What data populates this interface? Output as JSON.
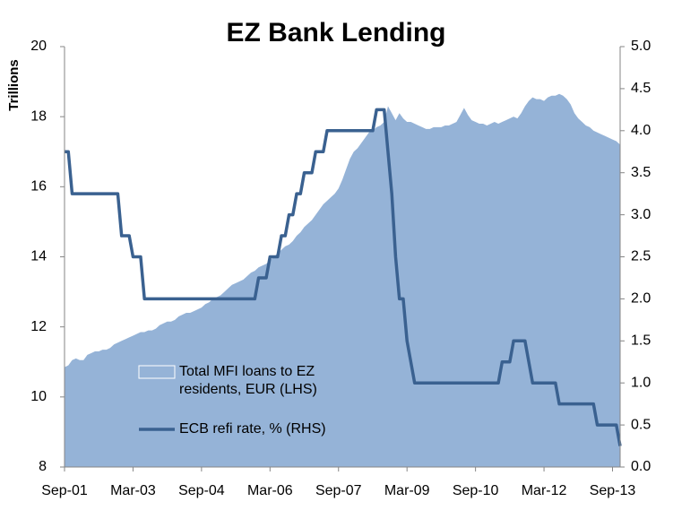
{
  "chart_data": {
    "type": "combo",
    "title": "EZ Bank Lending",
    "y_label": "Trillions",
    "categories": [
      "Sep-01",
      null,
      null,
      null,
      null,
      null,
      null,
      null,
      null,
      null,
      null,
      null,
      null,
      null,
      null,
      null,
      null,
      null,
      "Mar-03",
      null,
      null,
      null,
      null,
      null,
      null,
      null,
      null,
      null,
      null,
      null,
      null,
      null,
      null,
      null,
      null,
      null,
      "Sep-04",
      null,
      null,
      null,
      null,
      null,
      null,
      null,
      null,
      null,
      null,
      null,
      null,
      null,
      null,
      null,
      null,
      null,
      "Mar-06",
      null,
      null,
      null,
      null,
      null,
      null,
      null,
      null,
      null,
      null,
      null,
      null,
      null,
      null,
      null,
      null,
      null,
      "Sep-07",
      null,
      null,
      null,
      null,
      null,
      null,
      null,
      null,
      null,
      null,
      null,
      null,
      null,
      null,
      null,
      null,
      null,
      "Mar-09",
      null,
      null,
      null,
      null,
      null,
      null,
      null,
      null,
      null,
      null,
      null,
      null,
      null,
      null,
      null,
      null,
      null,
      "Sep-10",
      null,
      null,
      null,
      null,
      null,
      null,
      null,
      null,
      null,
      null,
      null,
      null,
      null,
      null,
      null,
      null,
      null,
      "Mar-12",
      null,
      null,
      null,
      null,
      null,
      null,
      null,
      null,
      null,
      null,
      null,
      null,
      null,
      null,
      null,
      null,
      null,
      "Sep-13",
      null,
      null
    ],
    "series": [
      {
        "name": "Total MFI loans to EZ residents, EUR (LHS)",
        "type": "area",
        "color": "#95b3d7",
        "values": [
          10.85,
          10.9,
          11.05,
          11.1,
          11.05,
          11.05,
          11.2,
          11.25,
          11.3,
          11.3,
          11.35,
          11.35,
          11.4,
          11.5,
          11.55,
          11.6,
          11.65,
          11.7,
          11.75,
          11.8,
          11.85,
          11.85,
          11.9,
          11.9,
          11.95,
          12.05,
          12.1,
          12.15,
          12.15,
          12.2,
          12.3,
          12.35,
          12.4,
          12.4,
          12.45,
          12.5,
          12.55,
          12.65,
          12.7,
          12.8,
          12.85,
          12.9,
          13.0,
          13.1,
          13.2,
          13.25,
          13.3,
          13.35,
          13.45,
          13.55,
          13.6,
          13.7,
          13.75,
          13.8,
          13.9,
          14.0,
          14.1,
          14.2,
          14.3,
          14.35,
          14.45,
          14.6,
          14.7,
          14.85,
          14.95,
          15.05,
          15.2,
          15.35,
          15.5,
          15.6,
          15.7,
          15.8,
          15.95,
          16.2,
          16.5,
          16.8,
          17.0,
          17.1,
          17.25,
          17.4,
          17.55,
          17.6,
          17.7,
          17.75,
          17.85,
          18.3,
          18.1,
          17.9,
          18.1,
          17.95,
          17.85,
          17.85,
          17.8,
          17.75,
          17.7,
          17.65,
          17.65,
          17.7,
          17.7,
          17.7,
          17.75,
          17.75,
          17.8,
          17.85,
          18.05,
          18.25,
          18.05,
          17.9,
          17.85,
          17.8,
          17.8,
          17.75,
          17.8,
          17.85,
          17.8,
          17.85,
          17.9,
          17.95,
          18.0,
          17.95,
          18.1,
          18.3,
          18.45,
          18.55,
          18.5,
          18.5,
          18.45,
          18.55,
          18.6,
          18.6,
          18.65,
          18.6,
          18.5,
          18.35,
          18.1,
          17.95,
          17.85,
          17.75,
          17.7,
          17.6,
          17.55,
          17.5,
          17.45,
          17.4,
          17.35,
          17.3,
          17.2
        ]
      },
      {
        "name": "ECB refi rate, % (RHS)",
        "type": "line",
        "axis": "y2",
        "color": "#3a6190",
        "values": [
          3.75,
          3.75,
          3.25,
          3.25,
          3.25,
          3.25,
          3.25,
          3.25,
          3.25,
          3.25,
          3.25,
          3.25,
          3.25,
          3.25,
          3.25,
          2.75,
          2.75,
          2.75,
          2.5,
          2.5,
          2.5,
          2,
          2,
          2,
          2,
          2,
          2,
          2,
          2,
          2,
          2,
          2,
          2,
          2,
          2,
          2,
          2,
          2,
          2,
          2,
          2,
          2,
          2,
          2,
          2,
          2,
          2,
          2,
          2,
          2,
          2,
          2.25,
          2.25,
          2.25,
          2.5,
          2.5,
          2.5,
          2.75,
          2.75,
          3,
          3,
          3.25,
          3.25,
          3.5,
          3.5,
          3.5,
          3.75,
          3.75,
          3.75,
          4,
          4,
          4,
          4,
          4,
          4,
          4,
          4,
          4,
          4,
          4,
          4,
          4,
          4.25,
          4.25,
          4.25,
          3.75,
          3.25,
          2.5,
          2,
          2,
          1.5,
          1.25,
          1,
          1,
          1,
          1,
          1,
          1,
          1,
          1,
          1,
          1,
          1,
          1,
          1,
          1,
          1,
          1,
          1,
          1,
          1,
          1,
          1,
          1,
          1,
          1.25,
          1.25,
          1.25,
          1.5,
          1.5,
          1.5,
          1.5,
          1.25,
          1,
          1,
          1,
          1,
          1,
          1,
          1,
          0.75,
          0.75,
          0.75,
          0.75,
          0.75,
          0.75,
          0.75,
          0.75,
          0.75,
          0.75,
          0.5,
          0.5,
          0.5,
          0.5,
          0.5,
          0.5,
          0.25
        ]
      }
    ],
    "ylim": [
      8,
      20
    ],
    "yticks": [
      8,
      10,
      12,
      14,
      16,
      18,
      20
    ],
    "y2lim": [
      0,
      5
    ],
    "y2ticks": [
      {
        "value": 0,
        "label": "0.0"
      },
      0.5,
      {
        "value": 1,
        "label": "1.0"
      },
      1.5,
      {
        "value": 2,
        "label": "2.0"
      },
      2.5,
      {
        "value": 3,
        "label": "3.0"
      },
      3.5,
      {
        "value": 4,
        "label": "4.0"
      },
      4.5,
      {
        "value": 5,
        "label": "5.0"
      }
    ],
    "grid": false
  }
}
